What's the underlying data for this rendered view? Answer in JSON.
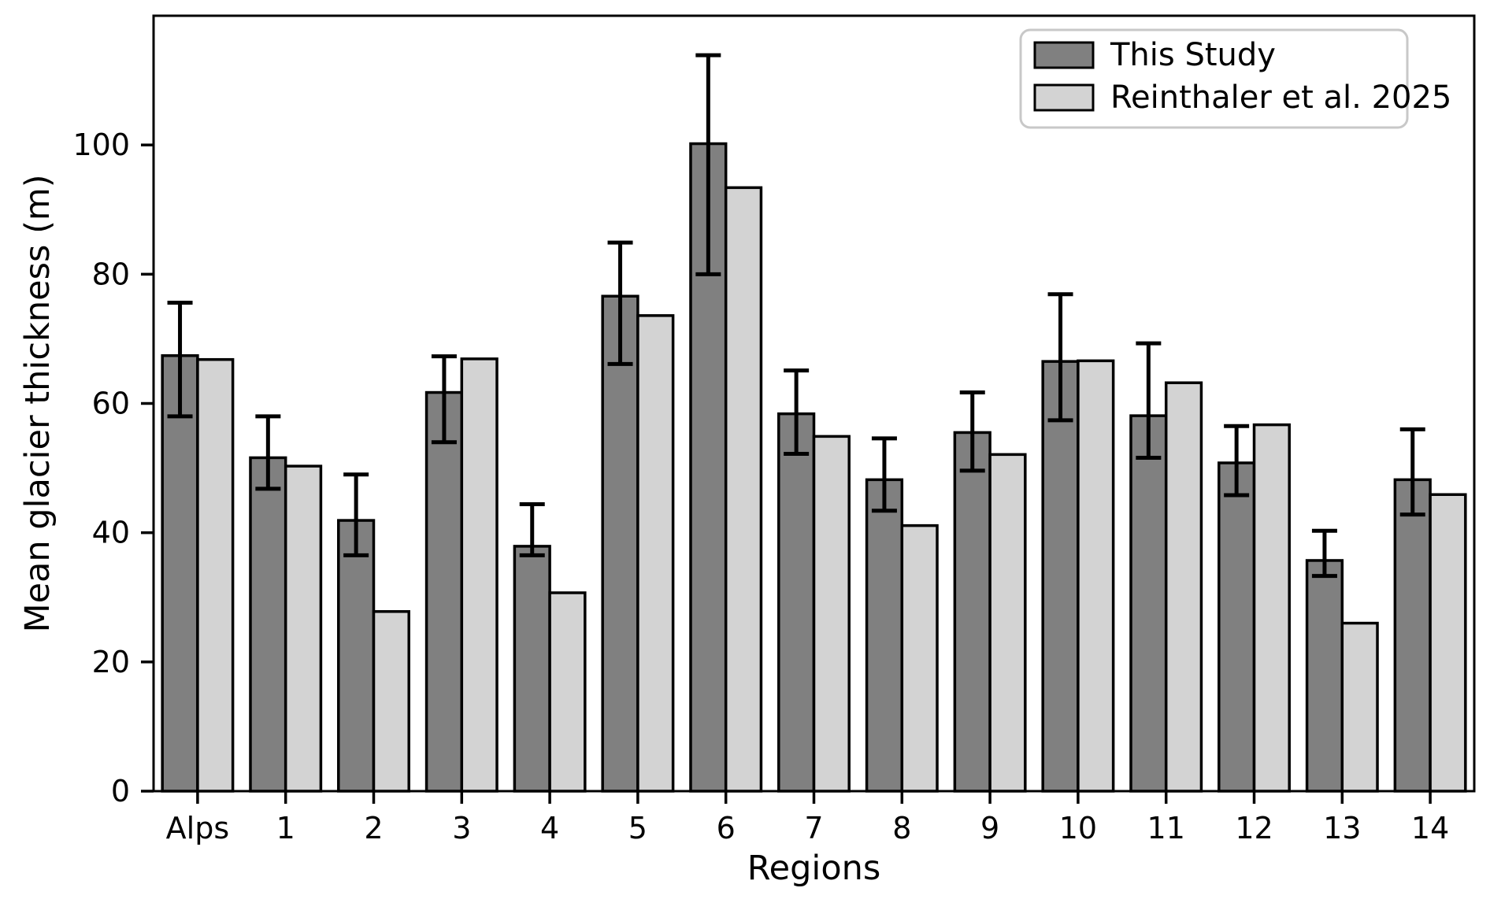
{
  "chart_data": {
    "type": "bar",
    "title": "",
    "xlabel": "Regions",
    "ylabel": "Mean glacier thickness (m)",
    "categories": [
      "Alps",
      "1",
      "2",
      "3",
      "4",
      "5",
      "6",
      "7",
      "8",
      "9",
      "10",
      "11",
      "12",
      "13",
      "14"
    ],
    "series": [
      {
        "name": "This Study",
        "color": "#808080",
        "edge_color": "#000000",
        "values": [
          67.4,
          51.6,
          41.9,
          61.7,
          37.9,
          76.6,
          100.2,
          58.4,
          48.2,
          55.5,
          66.5,
          58.1,
          50.8,
          35.7,
          48.2
        ],
        "error_low": [
          58.0,
          46.8,
          36.5,
          54.0,
          36.5,
          66.1,
          80.0,
          52.2,
          43.4,
          49.6,
          57.4,
          51.6,
          45.8,
          33.3,
          42.8
        ],
        "error_high": [
          75.6,
          58.0,
          49.0,
          67.3,
          44.4,
          84.9,
          113.9,
          65.1,
          54.6,
          61.7,
          76.9,
          69.3,
          56.5,
          40.3,
          56.0
        ]
      },
      {
        "name": "Reinthaler et al. 2025",
        "color": "#d3d3d3",
        "edge_color": "#000000",
        "values": [
          66.8,
          50.3,
          27.8,
          66.9,
          30.7,
          73.6,
          93.4,
          54.9,
          41.1,
          52.1,
          66.6,
          63.2,
          56.7,
          26.0,
          45.9
        ]
      }
    ],
    "ylim": [
      0,
      120
    ],
    "yticks": [
      0,
      20,
      40,
      60,
      80,
      100
    ],
    "grid": false,
    "legend_position": "upper right",
    "error_bar_color": "#000000",
    "background": "#ffffff"
  }
}
